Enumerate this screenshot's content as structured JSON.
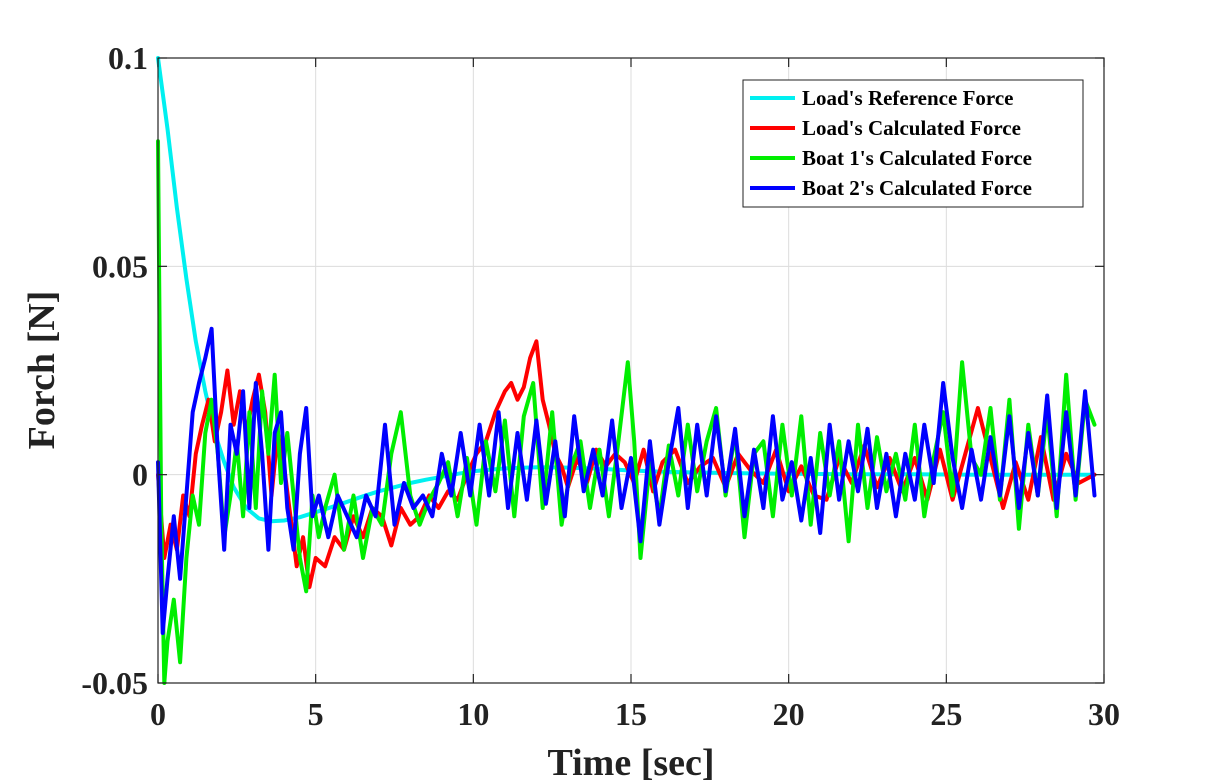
{
  "chart_data": {
    "type": "line",
    "title": "",
    "xlabel": "Time [sec]",
    "ylabel": "Forch [N]",
    "xlim": [
      0,
      30
    ],
    "ylim": [
      -0.05,
      0.1
    ],
    "grid": true,
    "legend_position": "top-right",
    "x_ticks": [
      0,
      5,
      10,
      15,
      20,
      25,
      30
    ],
    "x_tick_labels": [
      "0",
      "5",
      "10",
      "15",
      "20",
      "25",
      "30"
    ],
    "y_ticks": [
      -0.05,
      0,
      0.05,
      0.1
    ],
    "y_tick_labels": [
      "-0.05",
      "0",
      "0.05",
      "0.1"
    ],
    "series": [
      {
        "name": "Load's Reference Force",
        "color": "#00f0f0",
        "x": [
          0,
          0.3,
          0.6,
          0.9,
          1.2,
          1.5,
          1.8,
          2.1,
          2.4,
          2.8,
          3.2,
          3.6,
          4.0,
          4.5,
          5.0,
          5.5,
          6.0,
          6.5,
          7.0,
          7.5,
          8.0,
          8.5,
          9.0,
          9.5,
          10.0,
          11.0,
          12.0,
          13.0,
          14.0,
          15.0,
          16.0,
          18.0,
          20.0,
          22.0,
          24.0,
          26.0,
          28.0,
          29.7
        ],
        "values": [
          0.1,
          0.083,
          0.064,
          0.047,
          0.032,
          0.02,
          0.01,
          0.003,
          -0.003,
          -0.008,
          -0.0105,
          -0.0112,
          -0.011,
          -0.0102,
          -0.009,
          -0.0078,
          -0.0065,
          -0.0052,
          -0.004,
          -0.003,
          -0.002,
          -0.0012,
          -0.0005,
          0.0002,
          0.0008,
          0.0015,
          0.0018,
          0.0017,
          0.0014,
          0.001,
          0.0007,
          0.0004,
          0.0002,
          0.0001,
          0.0001,
          0.0,
          0.0,
          0.0
        ]
      },
      {
        "name": "Load's Calculated Force",
        "color": "#ff0000",
        "x": [
          0,
          0.2,
          0.4,
          0.6,
          0.8,
          1.0,
          1.2,
          1.4,
          1.6,
          1.8,
          2.0,
          2.2,
          2.4,
          2.6,
          2.8,
          3.0,
          3.2,
          3.4,
          3.6,
          3.8,
          4.0,
          4.2,
          4.4,
          4.6,
          4.8,
          5.0,
          5.3,
          5.6,
          5.9,
          6.2,
          6.5,
          6.8,
          7.1,
          7.4,
          7.7,
          8.0,
          8.3,
          8.6,
          8.9,
          9.2,
          9.5,
          9.8,
          10.1,
          10.4,
          10.7,
          11.0,
          11.2,
          11.4,
          11.6,
          11.8,
          12.0,
          12.2,
          12.4,
          12.6,
          12.8,
          13.0,
          13.3,
          13.6,
          13.9,
          14.2,
          14.5,
          14.8,
          15.1,
          15.4,
          15.7,
          16.0,
          16.4,
          16.8,
          17.2,
          17.6,
          18.0,
          18.4,
          18.8,
          19.2,
          19.6,
          20.0,
          20.4,
          20.8,
          21.2,
          21.6,
          22.0,
          22.4,
          22.8,
          23.2,
          23.6,
          24.0,
          24.4,
          24.8,
          25.2,
          25.6,
          26.0,
          26.4,
          26.8,
          27.2,
          27.6,
          28.0,
          28.4,
          28.8,
          29.2,
          29.7
        ],
        "values": [
          0.0,
          -0.02,
          -0.012,
          -0.018,
          -0.005,
          -0.01,
          0.005,
          0.012,
          0.018,
          0.008,
          0.015,
          0.025,
          0.012,
          0.02,
          0.01,
          0.018,
          0.024,
          0.015,
          -0.005,
          0.01,
          0.002,
          -0.01,
          -0.022,
          -0.015,
          -0.027,
          -0.02,
          -0.022,
          -0.015,
          -0.018,
          -0.01,
          -0.015,
          -0.008,
          -0.01,
          -0.017,
          -0.008,
          -0.012,
          -0.01,
          -0.005,
          -0.008,
          -0.004,
          -0.006,
          0.0,
          0.005,
          0.008,
          0.015,
          0.02,
          0.022,
          0.018,
          0.021,
          0.028,
          0.032,
          0.018,
          0.012,
          0.005,
          0.002,
          -0.003,
          0.004,
          -0.002,
          0.006,
          0.002,
          0.005,
          0.003,
          -0.002,
          0.006,
          -0.004,
          0.003,
          0.006,
          -0.002,
          0.002,
          0.004,
          -0.003,
          0.005,
          0.001,
          -0.002,
          0.006,
          -0.004,
          0.002,
          -0.005,
          -0.006,
          0.004,
          -0.002,
          0.007,
          -0.003,
          0.004,
          -0.004,
          0.004,
          -0.006,
          0.006,
          -0.006,
          0.005,
          0.016,
          0.004,
          -0.008,
          0.003,
          -0.006,
          0.009,
          -0.006,
          0.005,
          -0.002,
          0.0
        ]
      },
      {
        "name": "Boat 1's Calculated Force",
        "color": "#00ee00",
        "x": [
          0,
          0.1,
          0.2,
          0.3,
          0.5,
          0.7,
          0.9,
          1.1,
          1.3,
          1.5,
          1.7,
          1.9,
          2.1,
          2.3,
          2.5,
          2.7,
          2.9,
          3.1,
          3.3,
          3.5,
          3.7,
          3.9,
          4.1,
          4.3,
          4.5,
          4.7,
          4.9,
          5.1,
          5.3,
          5.6,
          5.9,
          6.2,
          6.5,
          6.8,
          7.1,
          7.4,
          7.7,
          8.0,
          8.3,
          8.6,
          8.9,
          9.2,
          9.5,
          9.8,
          10.1,
          10.4,
          10.7,
          11.0,
          11.3,
          11.6,
          11.9,
          12.2,
          12.5,
          12.8,
          13.1,
          13.4,
          13.7,
          14.0,
          14.3,
          14.6,
          14.9,
          15.1,
          15.3,
          15.6,
          15.9,
          16.2,
          16.5,
          16.8,
          17.1,
          17.4,
          17.7,
          18.0,
          18.3,
          18.6,
          18.9,
          19.2,
          19.5,
          19.8,
          20.1,
          20.4,
          20.7,
          21.0,
          21.3,
          21.6,
          21.9,
          22.2,
          22.5,
          22.8,
          23.1,
          23.4,
          23.7,
          24.0,
          24.3,
          24.6,
          24.9,
          25.2,
          25.5,
          25.8,
          26.1,
          26.4,
          26.7,
          27.0,
          27.3,
          27.6,
          27.9,
          28.2,
          28.5,
          28.8,
          29.1,
          29.4,
          29.7
        ],
        "values": [
          0.08,
          -0.01,
          -0.05,
          -0.04,
          -0.03,
          -0.045,
          -0.02,
          -0.005,
          -0.012,
          0.01,
          0.018,
          0.005,
          -0.015,
          -0.005,
          0.008,
          -0.01,
          0.015,
          -0.008,
          0.02,
          0.005,
          0.024,
          -0.002,
          0.01,
          -0.005,
          -0.02,
          -0.028,
          -0.005,
          -0.015,
          -0.008,
          0.0,
          -0.018,
          -0.005,
          -0.02,
          -0.008,
          -0.012,
          0.005,
          0.015,
          -0.005,
          -0.012,
          -0.006,
          -0.002,
          0.003,
          -0.01,
          0.004,
          -0.012,
          0.008,
          -0.004,
          0.013,
          -0.01,
          0.014,
          0.022,
          -0.008,
          0.015,
          -0.012,
          0.002,
          0.008,
          -0.008,
          0.006,
          -0.01,
          0.008,
          0.027,
          0.008,
          -0.02,
          0.003,
          -0.01,
          0.007,
          -0.005,
          0.012,
          -0.004,
          0.008,
          0.016,
          -0.005,
          0.01,
          -0.015,
          0.005,
          0.008,
          -0.01,
          0.012,
          -0.005,
          0.014,
          -0.012,
          0.01,
          -0.005,
          0.008,
          -0.016,
          0.012,
          -0.008,
          0.009,
          -0.004,
          0.005,
          -0.006,
          0.012,
          -0.01,
          0.004,
          0.015,
          -0.005,
          0.027,
          0.004,
          0.0,
          0.016,
          -0.006,
          0.018,
          -0.013,
          0.012,
          -0.005,
          0.015,
          -0.01,
          0.024,
          -0.006,
          0.018,
          0.012
        ]
      },
      {
        "name": "Boat 2's Calculated Force",
        "color": "#0000ff",
        "x": [
          0,
          0.15,
          0.3,
          0.5,
          0.7,
          0.9,
          1.1,
          1.3,
          1.5,
          1.7,
          1.9,
          2.1,
          2.3,
          2.5,
          2.7,
          2.9,
          3.1,
          3.3,
          3.5,
          3.7,
          3.9,
          4.1,
          4.3,
          4.5,
          4.7,
          4.9,
          5.1,
          5.4,
          5.7,
          6.0,
          6.3,
          6.6,
          6.9,
          7.2,
          7.5,
          7.8,
          8.1,
          8.4,
          8.7,
          9.0,
          9.3,
          9.6,
          9.9,
          10.2,
          10.5,
          10.8,
          11.1,
          11.4,
          11.7,
          12.0,
          12.3,
          12.6,
          12.9,
          13.2,
          13.5,
          13.8,
          14.1,
          14.4,
          14.7,
          15.0,
          15.3,
          15.6,
          15.9,
          16.2,
          16.5,
          16.8,
          17.1,
          17.4,
          17.7,
          18.0,
          18.3,
          18.6,
          18.9,
          19.2,
          19.5,
          19.8,
          20.1,
          20.4,
          20.7,
          21.0,
          21.3,
          21.6,
          21.9,
          22.2,
          22.5,
          22.8,
          23.1,
          23.4,
          23.7,
          24.0,
          24.3,
          24.6,
          24.9,
          25.2,
          25.5,
          25.8,
          26.1,
          26.4,
          26.7,
          27.0,
          27.3,
          27.6,
          27.9,
          28.2,
          28.5,
          28.8,
          29.1,
          29.4,
          29.7
        ],
        "values": [
          0.003,
          -0.038,
          -0.025,
          -0.01,
          -0.025,
          -0.005,
          0.015,
          0.022,
          0.028,
          0.035,
          0.005,
          -0.018,
          0.012,
          0.005,
          0.02,
          -0.008,
          0.022,
          0.005,
          -0.018,
          0.01,
          0.015,
          -0.008,
          -0.018,
          0.005,
          0.016,
          -0.01,
          -0.005,
          -0.015,
          -0.005,
          -0.01,
          -0.015,
          -0.005,
          -0.01,
          0.012,
          -0.012,
          -0.002,
          -0.008,
          -0.005,
          -0.01,
          0.005,
          -0.005,
          0.01,
          -0.005,
          0.012,
          -0.005,
          0.015,
          -0.008,
          0.01,
          -0.006,
          0.013,
          -0.007,
          0.008,
          -0.01,
          0.014,
          -0.004,
          0.006,
          -0.005,
          0.013,
          -0.008,
          0.004,
          -0.016,
          0.008,
          -0.012,
          0.003,
          0.016,
          -0.008,
          0.012,
          -0.005,
          0.014,
          -0.004,
          0.011,
          -0.01,
          0.006,
          -0.008,
          0.014,
          -0.006,
          0.003,
          -0.011,
          0.004,
          -0.014,
          0.012,
          -0.006,
          0.008,
          -0.004,
          0.011,
          -0.008,
          0.005,
          -0.01,
          0.005,
          -0.006,
          0.012,
          -0.002,
          0.022,
          0.004,
          -0.008,
          0.006,
          -0.006,
          0.009,
          -0.005,
          0.014,
          -0.008,
          0.01,
          -0.005,
          0.019,
          -0.008,
          0.015,
          -0.005,
          0.02,
          -0.005
        ]
      }
    ]
  }
}
